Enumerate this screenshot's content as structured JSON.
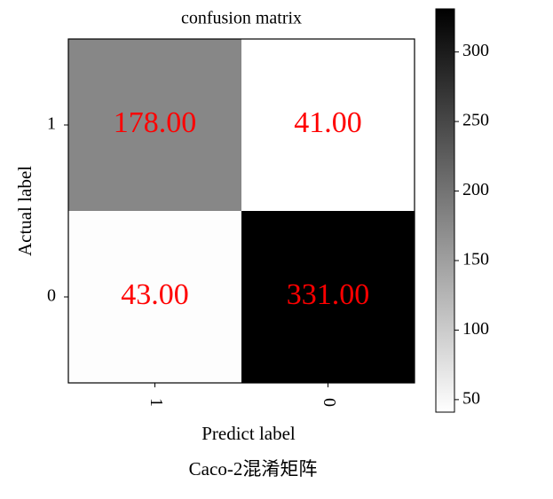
{
  "chart_data": {
    "type": "heatmap",
    "title": "confusion matrix",
    "x_label": "Predict label",
    "y_label": "Actual label",
    "caption": "Caco-2混淆矩阵",
    "x_categories": [
      "1",
      "0"
    ],
    "y_categories": [
      "1",
      "0"
    ],
    "values": [
      [
        178,
        41
      ],
      [
        43,
        331
      ]
    ],
    "value_labels": [
      [
        "178.00",
        "41.00"
      ],
      [
        "43.00",
        "331.00"
      ]
    ],
    "value_label_color": "#ff0000",
    "colormap": [
      "#ffffff",
      "#000000"
    ],
    "zlim": [
      41,
      331
    ],
    "zticks": [
      50,
      100,
      150,
      200,
      250,
      300
    ]
  }
}
